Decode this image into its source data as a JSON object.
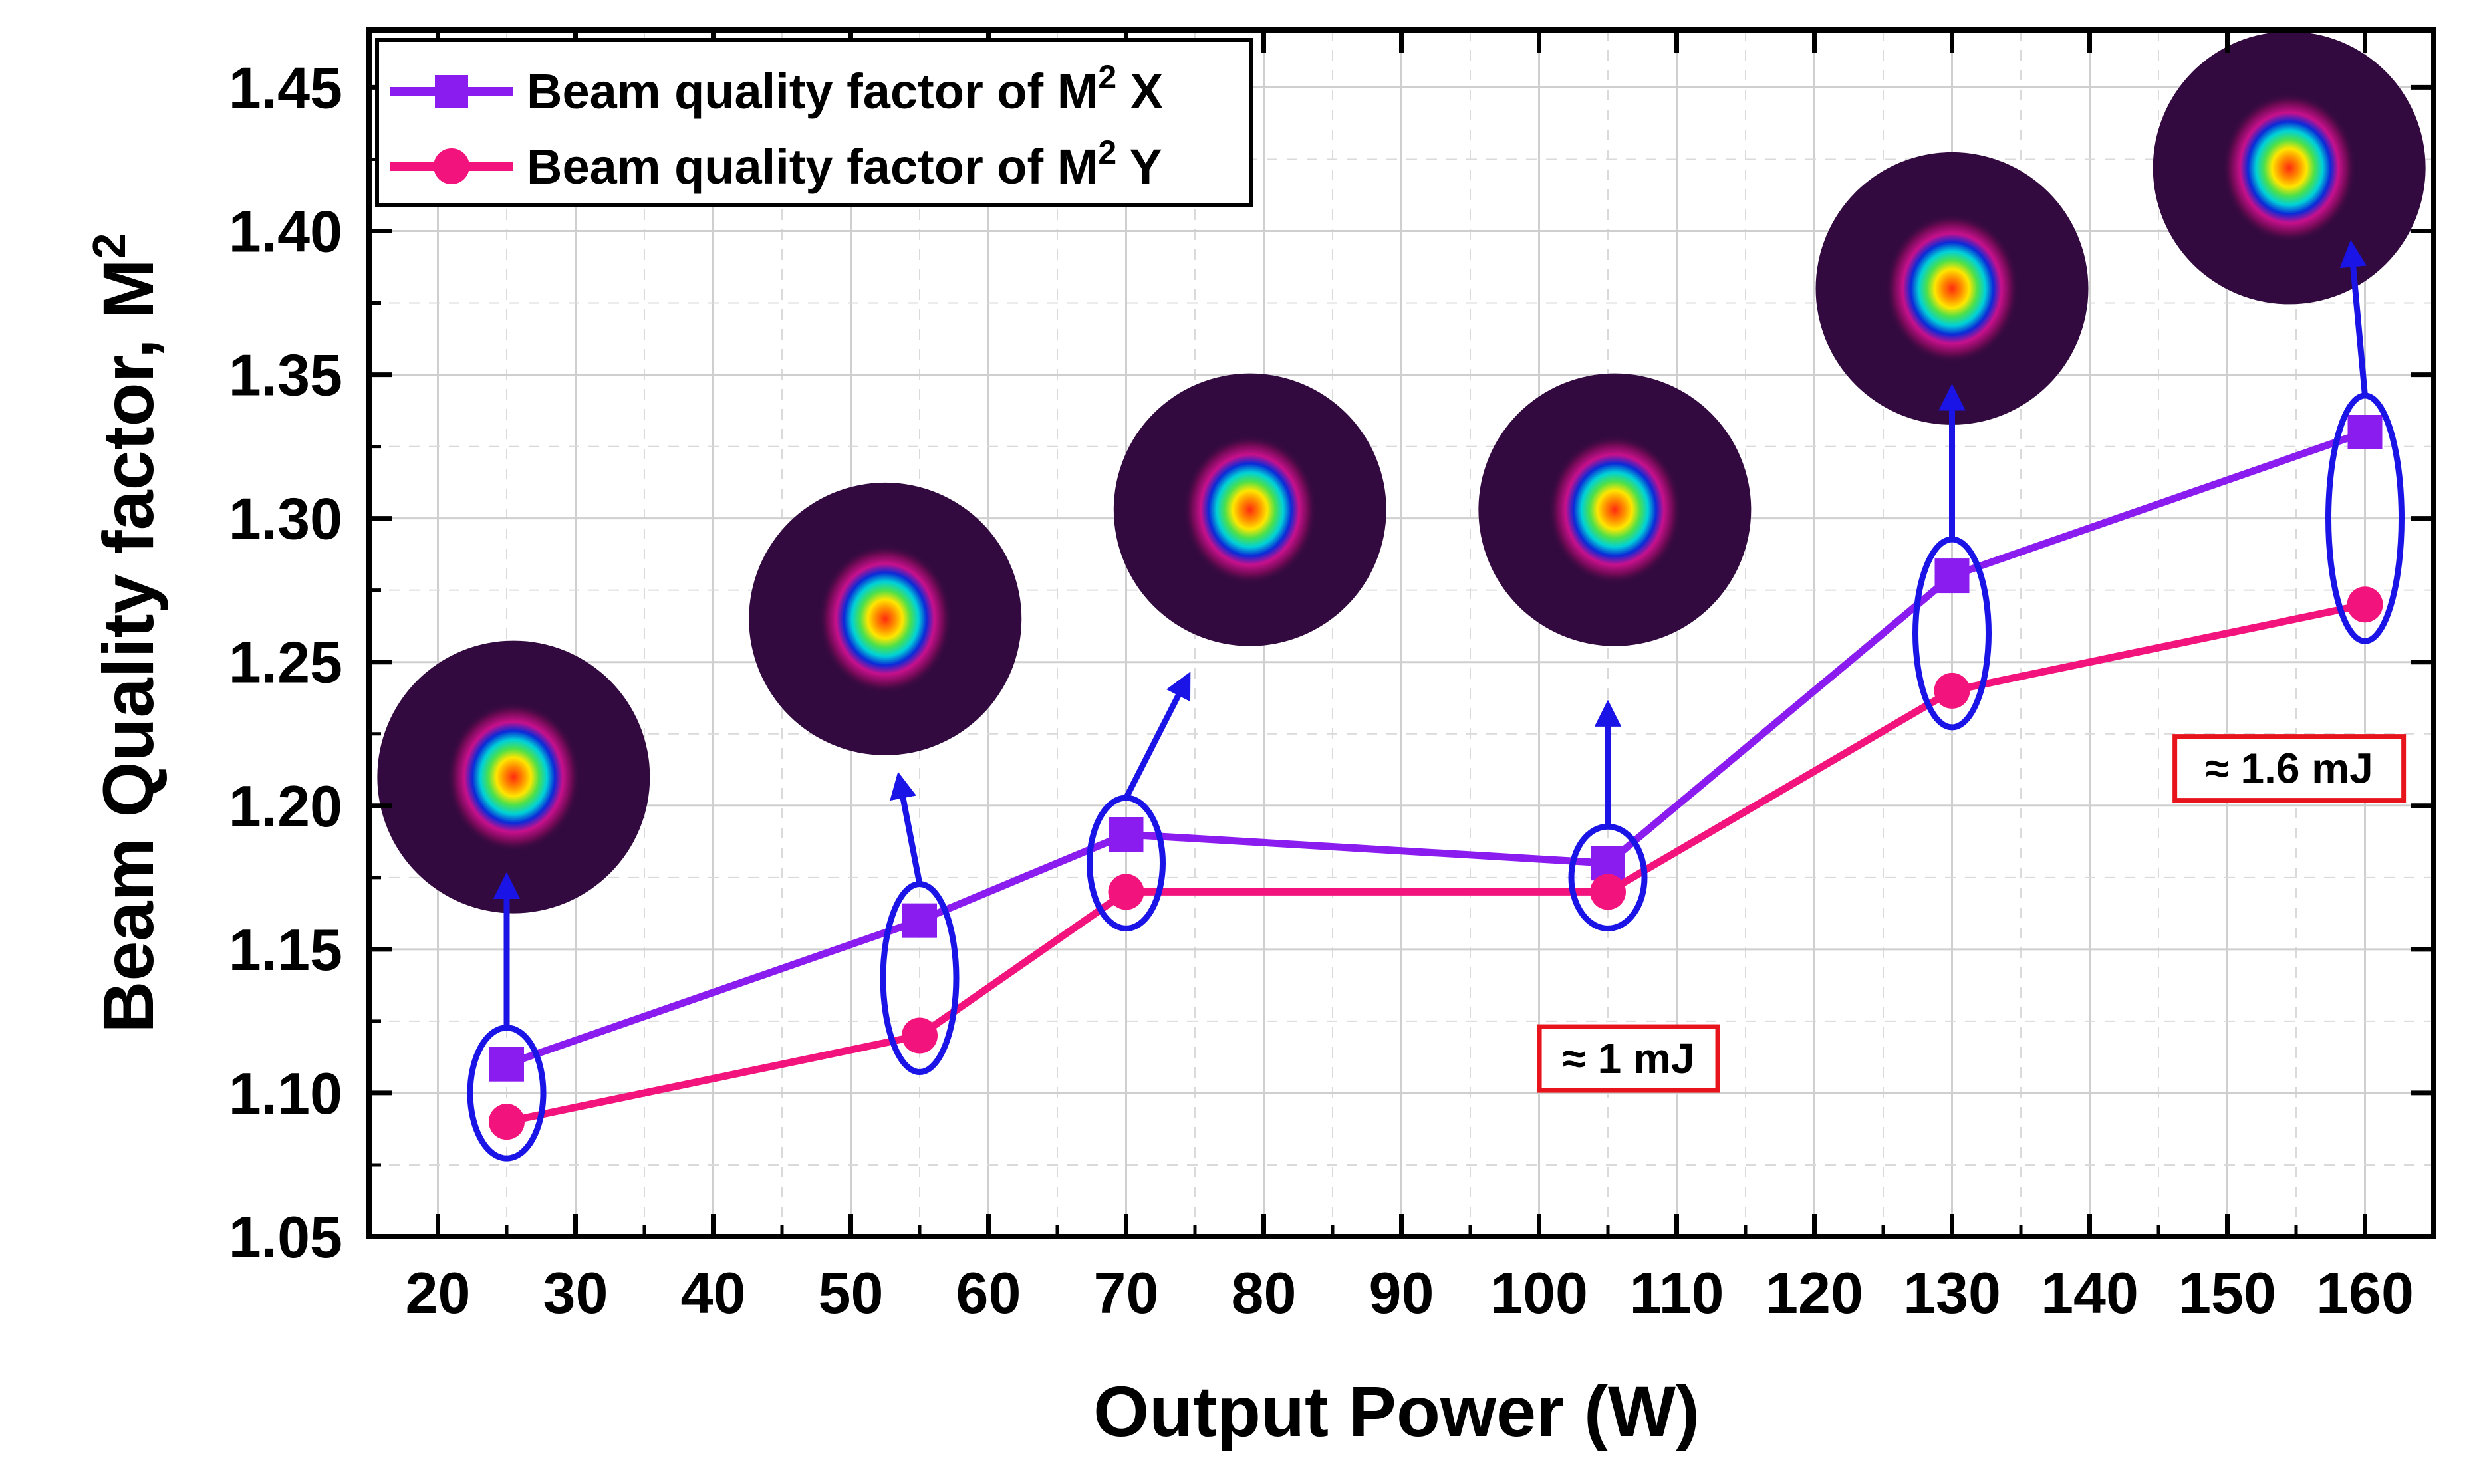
{
  "chart_data": {
    "type": "line",
    "xlabel": "Output Power (W)",
    "ylabel": "Beam Quality factor, M",
    "ylabel_sup": "2",
    "xlim": [
      15,
      165
    ],
    "ylim": [
      1.05,
      1.47
    ],
    "xticks": [
      20,
      30,
      40,
      50,
      60,
      70,
      80,
      90,
      100,
      110,
      120,
      130,
      140,
      150,
      160
    ],
    "yticks": [
      1.05,
      1.1,
      1.15,
      1.2,
      1.25,
      1.3,
      1.35,
      1.4,
      1.45
    ],
    "yticks_minor": [
      1.075,
      1.125,
      1.175,
      1.225,
      1.275,
      1.325,
      1.375,
      1.425
    ],
    "ytick_labels": [
      "1.05",
      "1.10",
      "1.15",
      "1.20",
      "1.25",
      "1.30",
      "1.35",
      "1.40",
      "1.45"
    ],
    "grid": true,
    "legend_position": "top-left",
    "x": [
      25,
      55,
      70,
      105,
      130,
      160
    ],
    "series": [
      {
        "name": "Beam quality factor of M",
        "name_sup": "2",
        "name_suffix": " X",
        "marker": "square",
        "color": "#8B1CF0",
        "values": [
          1.11,
          1.16,
          1.19,
          1.18,
          1.28,
          1.33
        ]
      },
      {
        "name": "Beam quality factor of M",
        "name_sup": "2",
        "name_suffix": " Y",
        "marker": "circle",
        "color": "#F2147C",
        "values": [
          1.09,
          1.12,
          1.17,
          1.17,
          1.24,
          1.27
        ]
      }
    ],
    "annotations": [
      {
        "text": "≈ 1 mJ",
        "x": 106.5,
        "y": 1.112,
        "box_color": "#E8141C"
      },
      {
        "text": "≈ 1.6 mJ",
        "x": 154.5,
        "y": 1.213,
        "box_color": "#E8141C"
      }
    ],
    "beam_profiles": [
      {
        "x": 25,
        "arrow_to": [
          25,
          1.175
        ],
        "center": [
          25.5,
          1.21
        ]
      },
      {
        "x": 55,
        "arrow_to": [
          53.5,
          1.21
        ],
        "center": [
          52.5,
          1.265
        ]
      },
      {
        "x": 70,
        "arrow_to": [
          74.5,
          1.245
        ],
        "center": [
          79,
          1.303
        ]
      },
      {
        "x": 105,
        "arrow_to": [
          105,
          1.235
        ],
        "center": [
          105.5,
          1.303
        ]
      },
      {
        "x": 130,
        "arrow_to": [
          130,
          1.345
        ],
        "center": [
          130,
          1.38
        ]
      },
      {
        "x": 160,
        "arrow_to": [
          159,
          1.395
        ],
        "center": [
          154.5,
          1.422
        ]
      }
    ],
    "accent_colors": {
      "arrow": "#1A14E6",
      "ellipse": "#1A14E6",
      "profile_bg": "#330A40"
    }
  }
}
